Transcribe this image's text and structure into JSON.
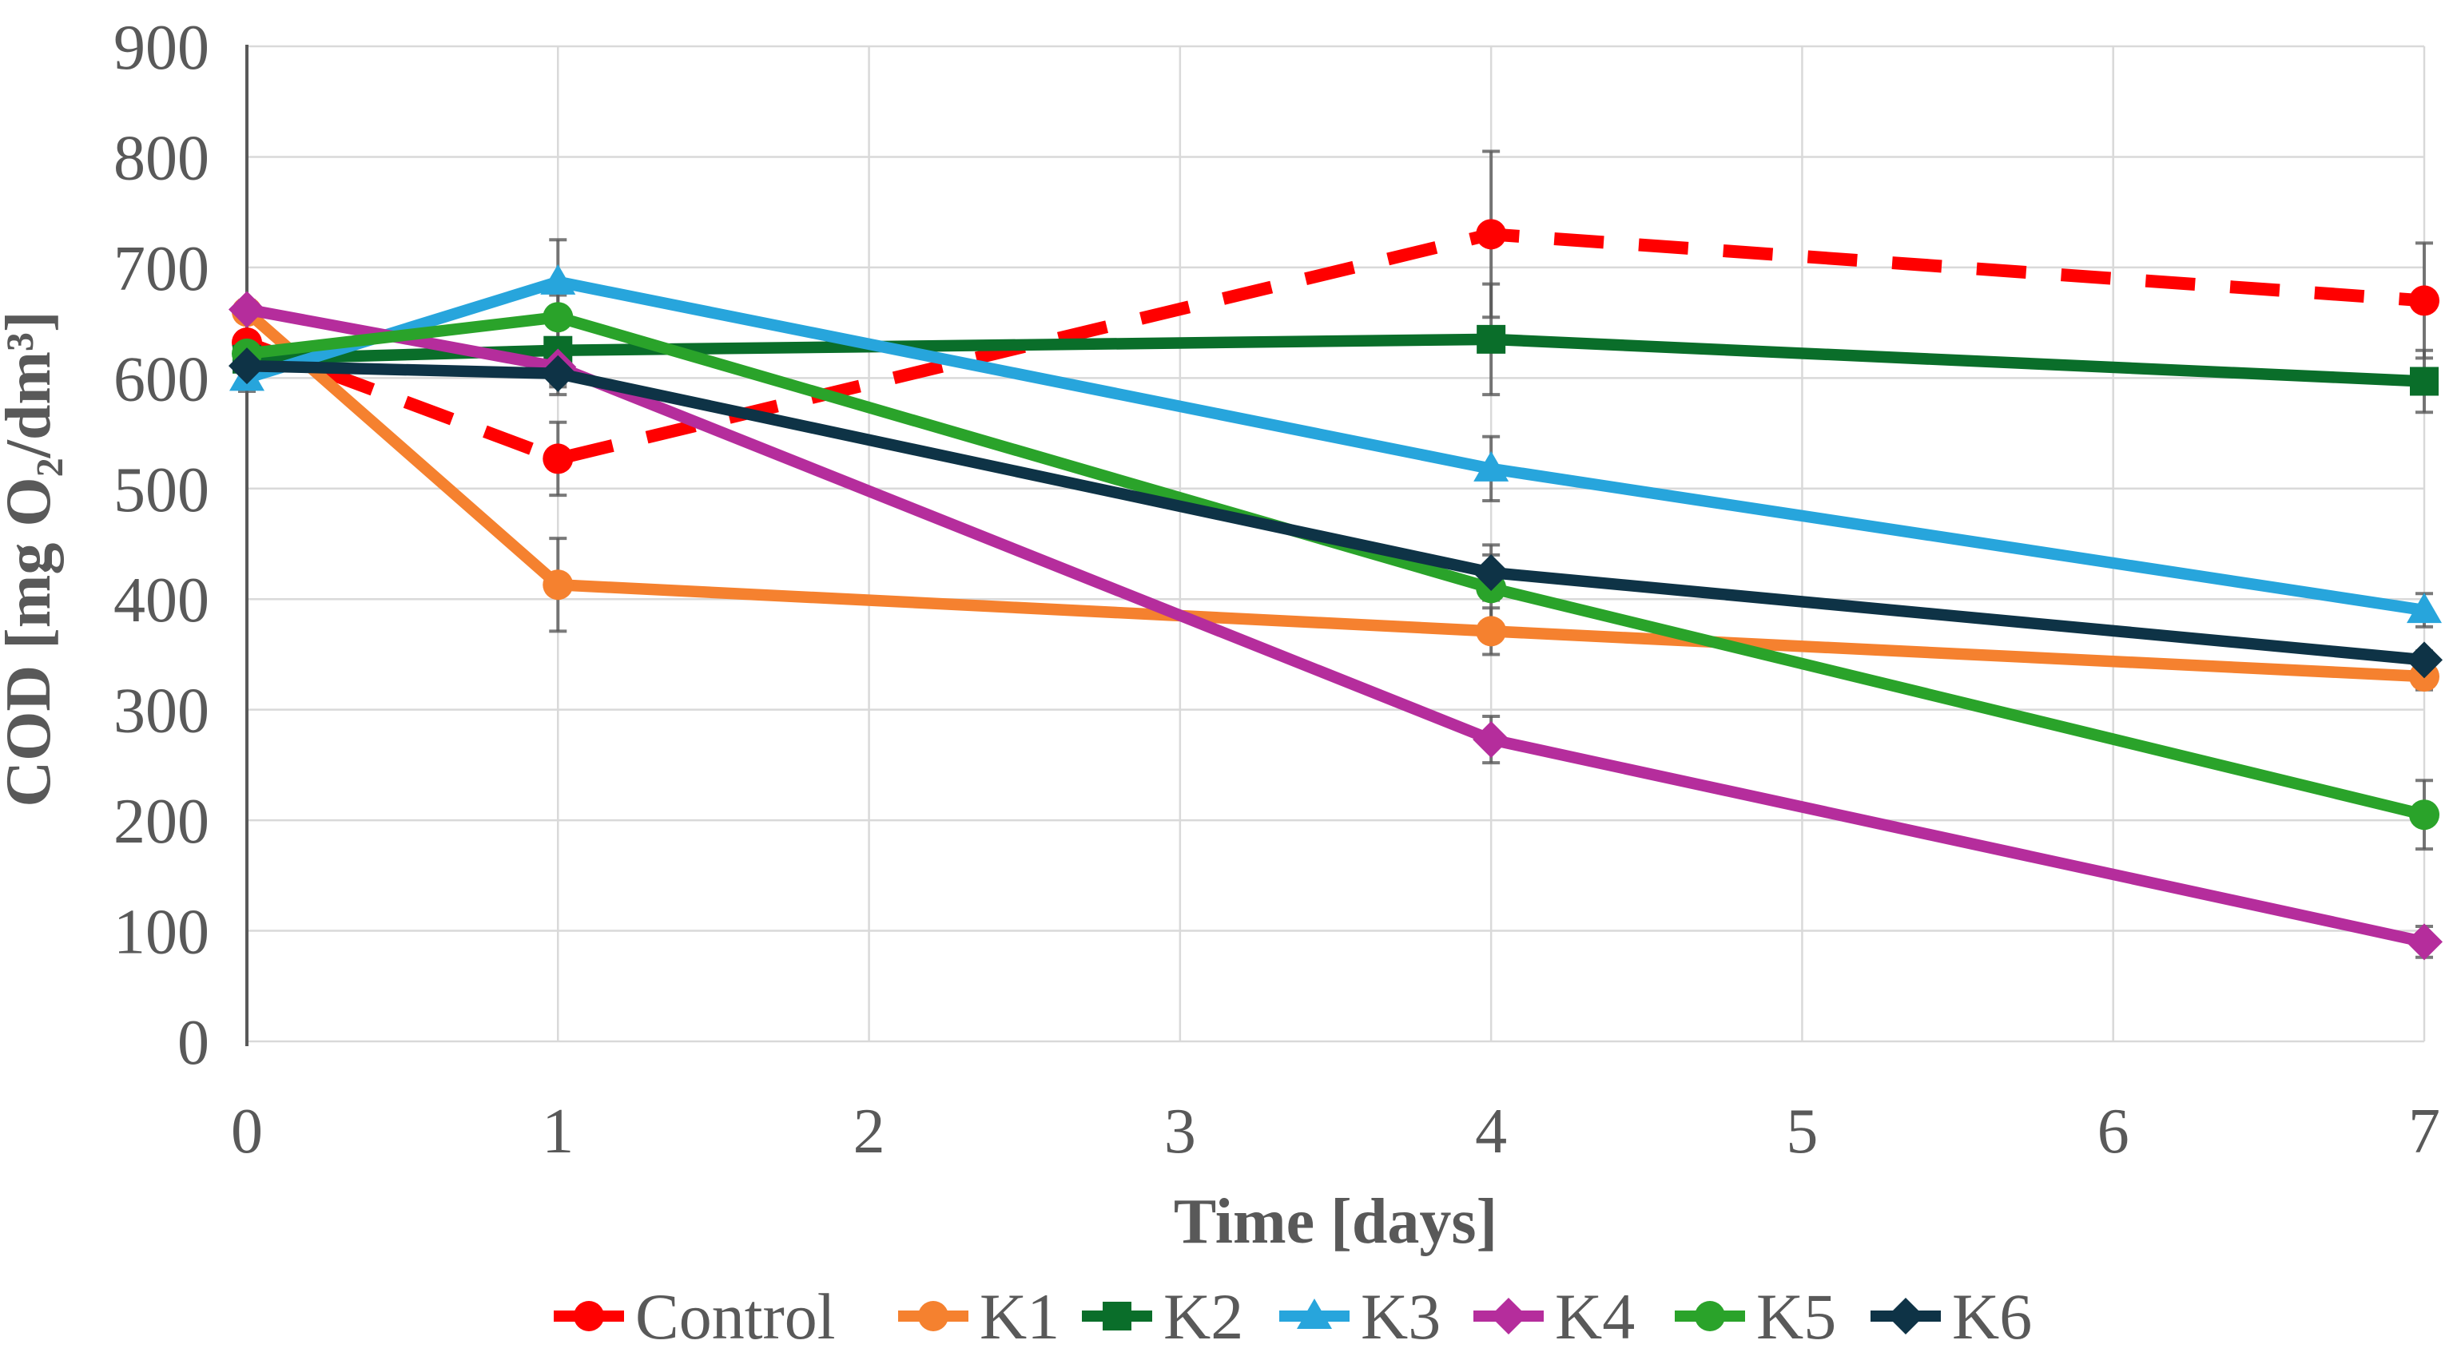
{
  "chart_data": {
    "type": "line",
    "x": [
      0,
      1,
      4,
      7
    ],
    "xlabel": "Time [days]",
    "ylabel": "COD [mg O₂/dm³]",
    "xlim": [
      0,
      7
    ],
    "ylim": [
      0,
      900
    ],
    "x_tick_labels": [
      "0",
      "1",
      "2",
      "3",
      "4",
      "5",
      "6",
      "7"
    ],
    "y_tick_labels": [
      "0",
      "100",
      "200",
      "300",
      "400",
      "500",
      "600",
      "700",
      "800",
      "900"
    ],
    "y_tick_values": [
      0,
      100,
      200,
      300,
      400,
      500,
      600,
      700,
      800,
      900
    ],
    "x_tick_values": [
      0,
      1,
      2,
      3,
      4,
      5,
      6,
      7
    ],
    "grid": true,
    "legend_position": "bottom",
    "error_bars": true,
    "series": [
      {
        "name": "Control",
        "color": "#FF0000",
        "dashed": true,
        "marker": "circle",
        "values": [
          632,
          527,
          730,
          670
        ],
        "errors": [
          30,
          33,
          75,
          52
        ]
      },
      {
        "name": "K1",
        "color": "#F5812F",
        "dashed": false,
        "marker": "circle",
        "values": [
          660,
          413,
          371,
          330
        ],
        "errors": [
          8,
          42,
          21,
          12
        ]
      },
      {
        "name": "K2",
        "color": "#0A6E2A",
        "dashed": false,
        "marker": "square",
        "values": [
          617,
          625,
          635,
          597
        ],
        "errors": [
          15,
          40,
          50,
          28
        ]
      },
      {
        "name": "K3",
        "color": "#27A5DC",
        "dashed": false,
        "marker": "triangle",
        "values": [
          600,
          687,
          518,
          390
        ],
        "errors": [
          12,
          38,
          29,
          15
        ]
      },
      {
        "name": "K4",
        "color": "#B52D9C",
        "dashed": false,
        "marker": "diamond",
        "values": [
          662,
          610,
          273,
          90
        ],
        "errors": [
          8,
          15,
          21,
          14
        ]
      },
      {
        "name": "K5",
        "color": "#2AA32A",
        "dashed": false,
        "marker": "circle",
        "values": [
          622,
          655,
          410,
          205
        ],
        "errors": [
          12,
          20,
          30,
          31
        ]
      },
      {
        "name": "K6",
        "color": "#0E3346",
        "dashed": false,
        "marker": "diamond",
        "values": [
          611,
          604,
          424,
          345
        ],
        "errors": [
          8,
          12,
          25,
          8
        ]
      }
    ],
    "colors": {
      "gridline": "#D9D9D9",
      "axis_line": "#595959",
      "error_bar": "#595959",
      "text": "#595959",
      "background": "#FFFFFF"
    }
  }
}
